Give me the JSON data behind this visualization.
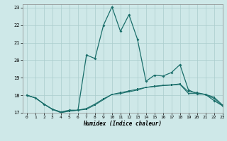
{
  "xlabel": "Humidex (Indice chaleur)",
  "ylabel": "",
  "xlim": [
    -0.5,
    23
  ],
  "ylim": [
    17.0,
    23.2
  ],
  "yticks": [
    17,
    18,
    19,
    20,
    21,
    22,
    23
  ],
  "xticks": [
    0,
    1,
    2,
    3,
    4,
    5,
    6,
    7,
    8,
    9,
    10,
    11,
    12,
    13,
    14,
    15,
    16,
    17,
    18,
    19,
    20,
    21,
    22,
    23
  ],
  "background_color": "#cee8e8",
  "grid_color": "#aacccc",
  "line_color": "#1a6e6a",
  "line1_x": [
    0,
    1,
    2,
    3,
    4,
    5,
    6,
    7,
    8,
    9,
    10,
    11,
    12,
    13,
    14,
    15,
    16,
    17,
    18,
    19,
    20,
    21,
    22,
    23
  ],
  "line1_y": [
    18.0,
    17.85,
    17.5,
    17.2,
    17.0,
    17.1,
    17.15,
    17.2,
    17.45,
    17.75,
    18.05,
    18.1,
    18.2,
    18.3,
    18.45,
    18.5,
    18.55,
    18.58,
    18.62,
    18.1,
    18.1,
    18.05,
    17.9,
    17.45
  ],
  "line2_x": [
    0,
    1,
    2,
    3,
    4,
    5,
    6,
    7,
    8,
    9,
    10,
    11,
    12,
    13,
    14,
    15,
    16,
    17,
    18,
    19,
    20,
    21,
    22,
    23
  ],
  "line2_y": [
    18.0,
    17.85,
    17.5,
    17.2,
    17.05,
    17.1,
    17.15,
    17.25,
    17.5,
    17.8,
    18.05,
    18.15,
    18.25,
    18.35,
    18.45,
    18.52,
    18.57,
    18.6,
    18.65,
    18.2,
    18.15,
    18.05,
    17.82,
    17.42
  ],
  "line3_x": [
    0,
    1,
    2,
    3,
    4,
    5,
    6,
    7,
    8,
    9,
    10,
    11,
    12,
    13,
    14,
    15,
    16,
    17,
    18,
    19,
    20,
    21,
    22,
    23
  ],
  "line3_y": [
    18.0,
    17.85,
    17.5,
    17.2,
    17.05,
    17.15,
    17.15,
    20.3,
    20.1,
    22.0,
    23.05,
    21.65,
    22.6,
    21.2,
    18.8,
    19.15,
    19.1,
    19.3,
    19.75,
    18.3,
    18.1,
    18.05,
    17.7,
    17.4
  ]
}
